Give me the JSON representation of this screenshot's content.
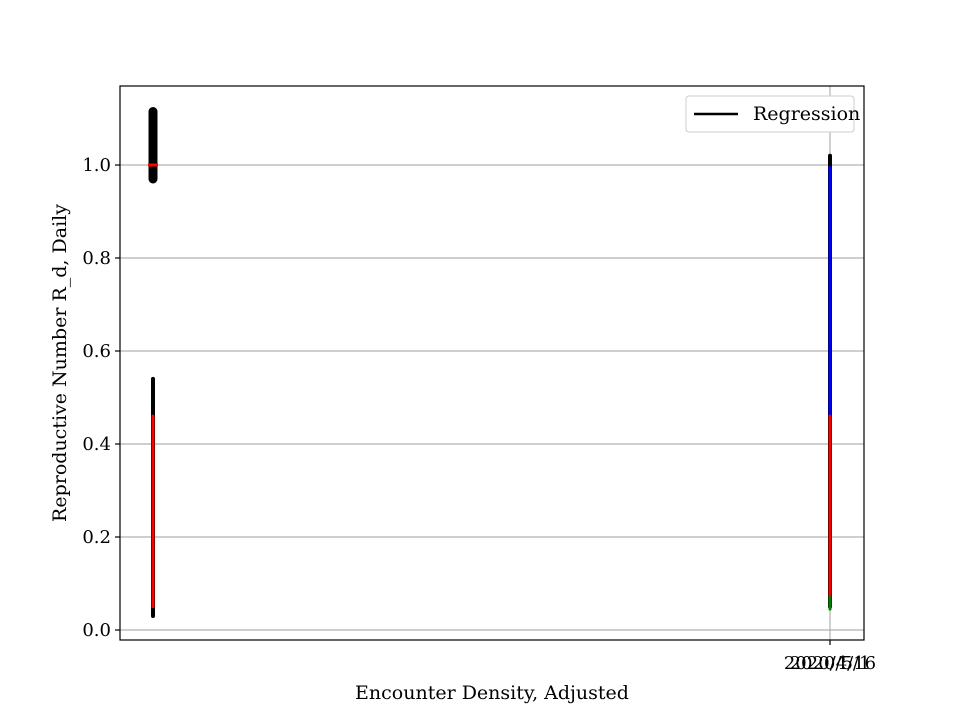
{
  "chart_data": {
    "type": "line",
    "title": "",
    "xlabel": "Encounter Density, Adjusted",
    "ylabel": "Reproductive Number R_d, Daily",
    "ylim": [
      -0.02,
      1.17
    ],
    "yticks": [
      0.0,
      0.2,
      0.4,
      0.6,
      0.8,
      1.0
    ],
    "ytick_labels": [
      "0.0",
      "0.2",
      "0.4",
      "0.6",
      "0.8",
      "1.0"
    ],
    "xtick_labels": [
      "2020/5/1",
      "2020/4/16"
    ],
    "grid": "horizontal and vertical at ticks",
    "legend": {
      "placement": "top-right",
      "entries": [
        {
          "label": "Regression",
          "color": "#000000"
        }
      ]
    },
    "left_cluster": {
      "black_upper": {
        "min": 0.97,
        "max": 1.115,
        "color": "#000000"
      },
      "red_marker": {
        "value": 1.0,
        "color": "#ff0000"
      },
      "black_lower": {
        "min": 0.03,
        "max": 0.54,
        "color": "#000000"
      },
      "red_lower": {
        "min": 0.05,
        "max": 0.46,
        "color": "#ff0000"
      }
    },
    "right_cluster": {
      "black_line": {
        "min": 0.05,
        "max": 1.02,
        "color": "#000000"
      },
      "blue_line": {
        "min": 0.45,
        "max": 0.995,
        "color": "#0000ff"
      },
      "red_line": {
        "min": 0.05,
        "max": 0.46,
        "color": "#ff0000"
      },
      "green_line": {
        "min": 0.045,
        "max": 0.07,
        "color": "#008000"
      }
    }
  }
}
